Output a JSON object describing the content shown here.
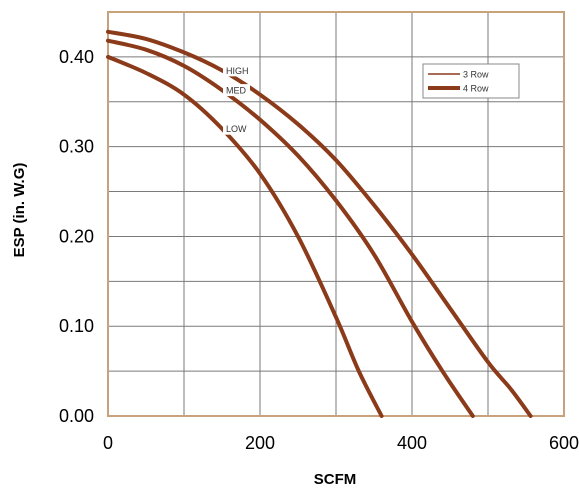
{
  "chart_data": {
    "type": "line",
    "xlabel": "SCFM",
    "ylabel": "ESP (in. W.G)",
    "xlim": [
      0,
      600
    ],
    "ylim": [
      0,
      0.45
    ],
    "x_ticks": [
      0,
      200,
      400,
      600
    ],
    "x_tick_labels": [
      "0",
      "200",
      "400",
      "600"
    ],
    "y_ticks": [
      0.0,
      0.1,
      0.2,
      0.3,
      0.4
    ],
    "y_tick_labels": [
      "0.00",
      "0.10",
      "0.20",
      "0.30",
      "0.40"
    ],
    "x_gridlines": [
      100,
      200,
      300,
      400,
      500
    ],
    "y_gridlines": [
      0.05,
      0.1,
      0.15,
      0.2,
      0.25,
      0.3,
      0.35,
      0.4
    ],
    "grid": true,
    "legend_position": "top-right",
    "legend": [
      {
        "label": "3 Row",
        "style": "thin"
      },
      {
        "label": "4 Row",
        "style": "thick"
      }
    ],
    "series": [
      {
        "name": "HIGH",
        "x": [
          0,
          50,
          100,
          150,
          200,
          250,
          300,
          350,
          400,
          450,
          500,
          530,
          556
        ],
        "y": [
          0.428,
          0.42,
          0.405,
          0.385,
          0.358,
          0.325,
          0.285,
          0.235,
          0.18,
          0.12,
          0.06,
          0.03,
          0.0
        ]
      },
      {
        "name": "MED",
        "x": [
          0,
          50,
          100,
          150,
          200,
          250,
          300,
          350,
          400,
          440,
          480
        ],
        "y": [
          0.418,
          0.408,
          0.39,
          0.363,
          0.33,
          0.29,
          0.24,
          0.18,
          0.105,
          0.05,
          0.0
        ]
      },
      {
        "name": "LOW",
        "x": [
          0,
          50,
          100,
          150,
          200,
          250,
          300,
          330,
          360
        ],
        "y": [
          0.4,
          0.382,
          0.358,
          0.32,
          0.27,
          0.2,
          0.11,
          0.05,
          0.0
        ]
      }
    ],
    "curve_labels": [
      {
        "series": "HIGH",
        "text": "HIGH",
        "at_x": 150
      },
      {
        "series": "MED",
        "text": "MED",
        "at_x": 150
      },
      {
        "series": "LOW",
        "text": "LOW",
        "at_x": 150
      }
    ]
  },
  "colors": {
    "curve": "#8b3a1a",
    "frame": "#c8a27a",
    "grid": "#7a7a7a"
  }
}
